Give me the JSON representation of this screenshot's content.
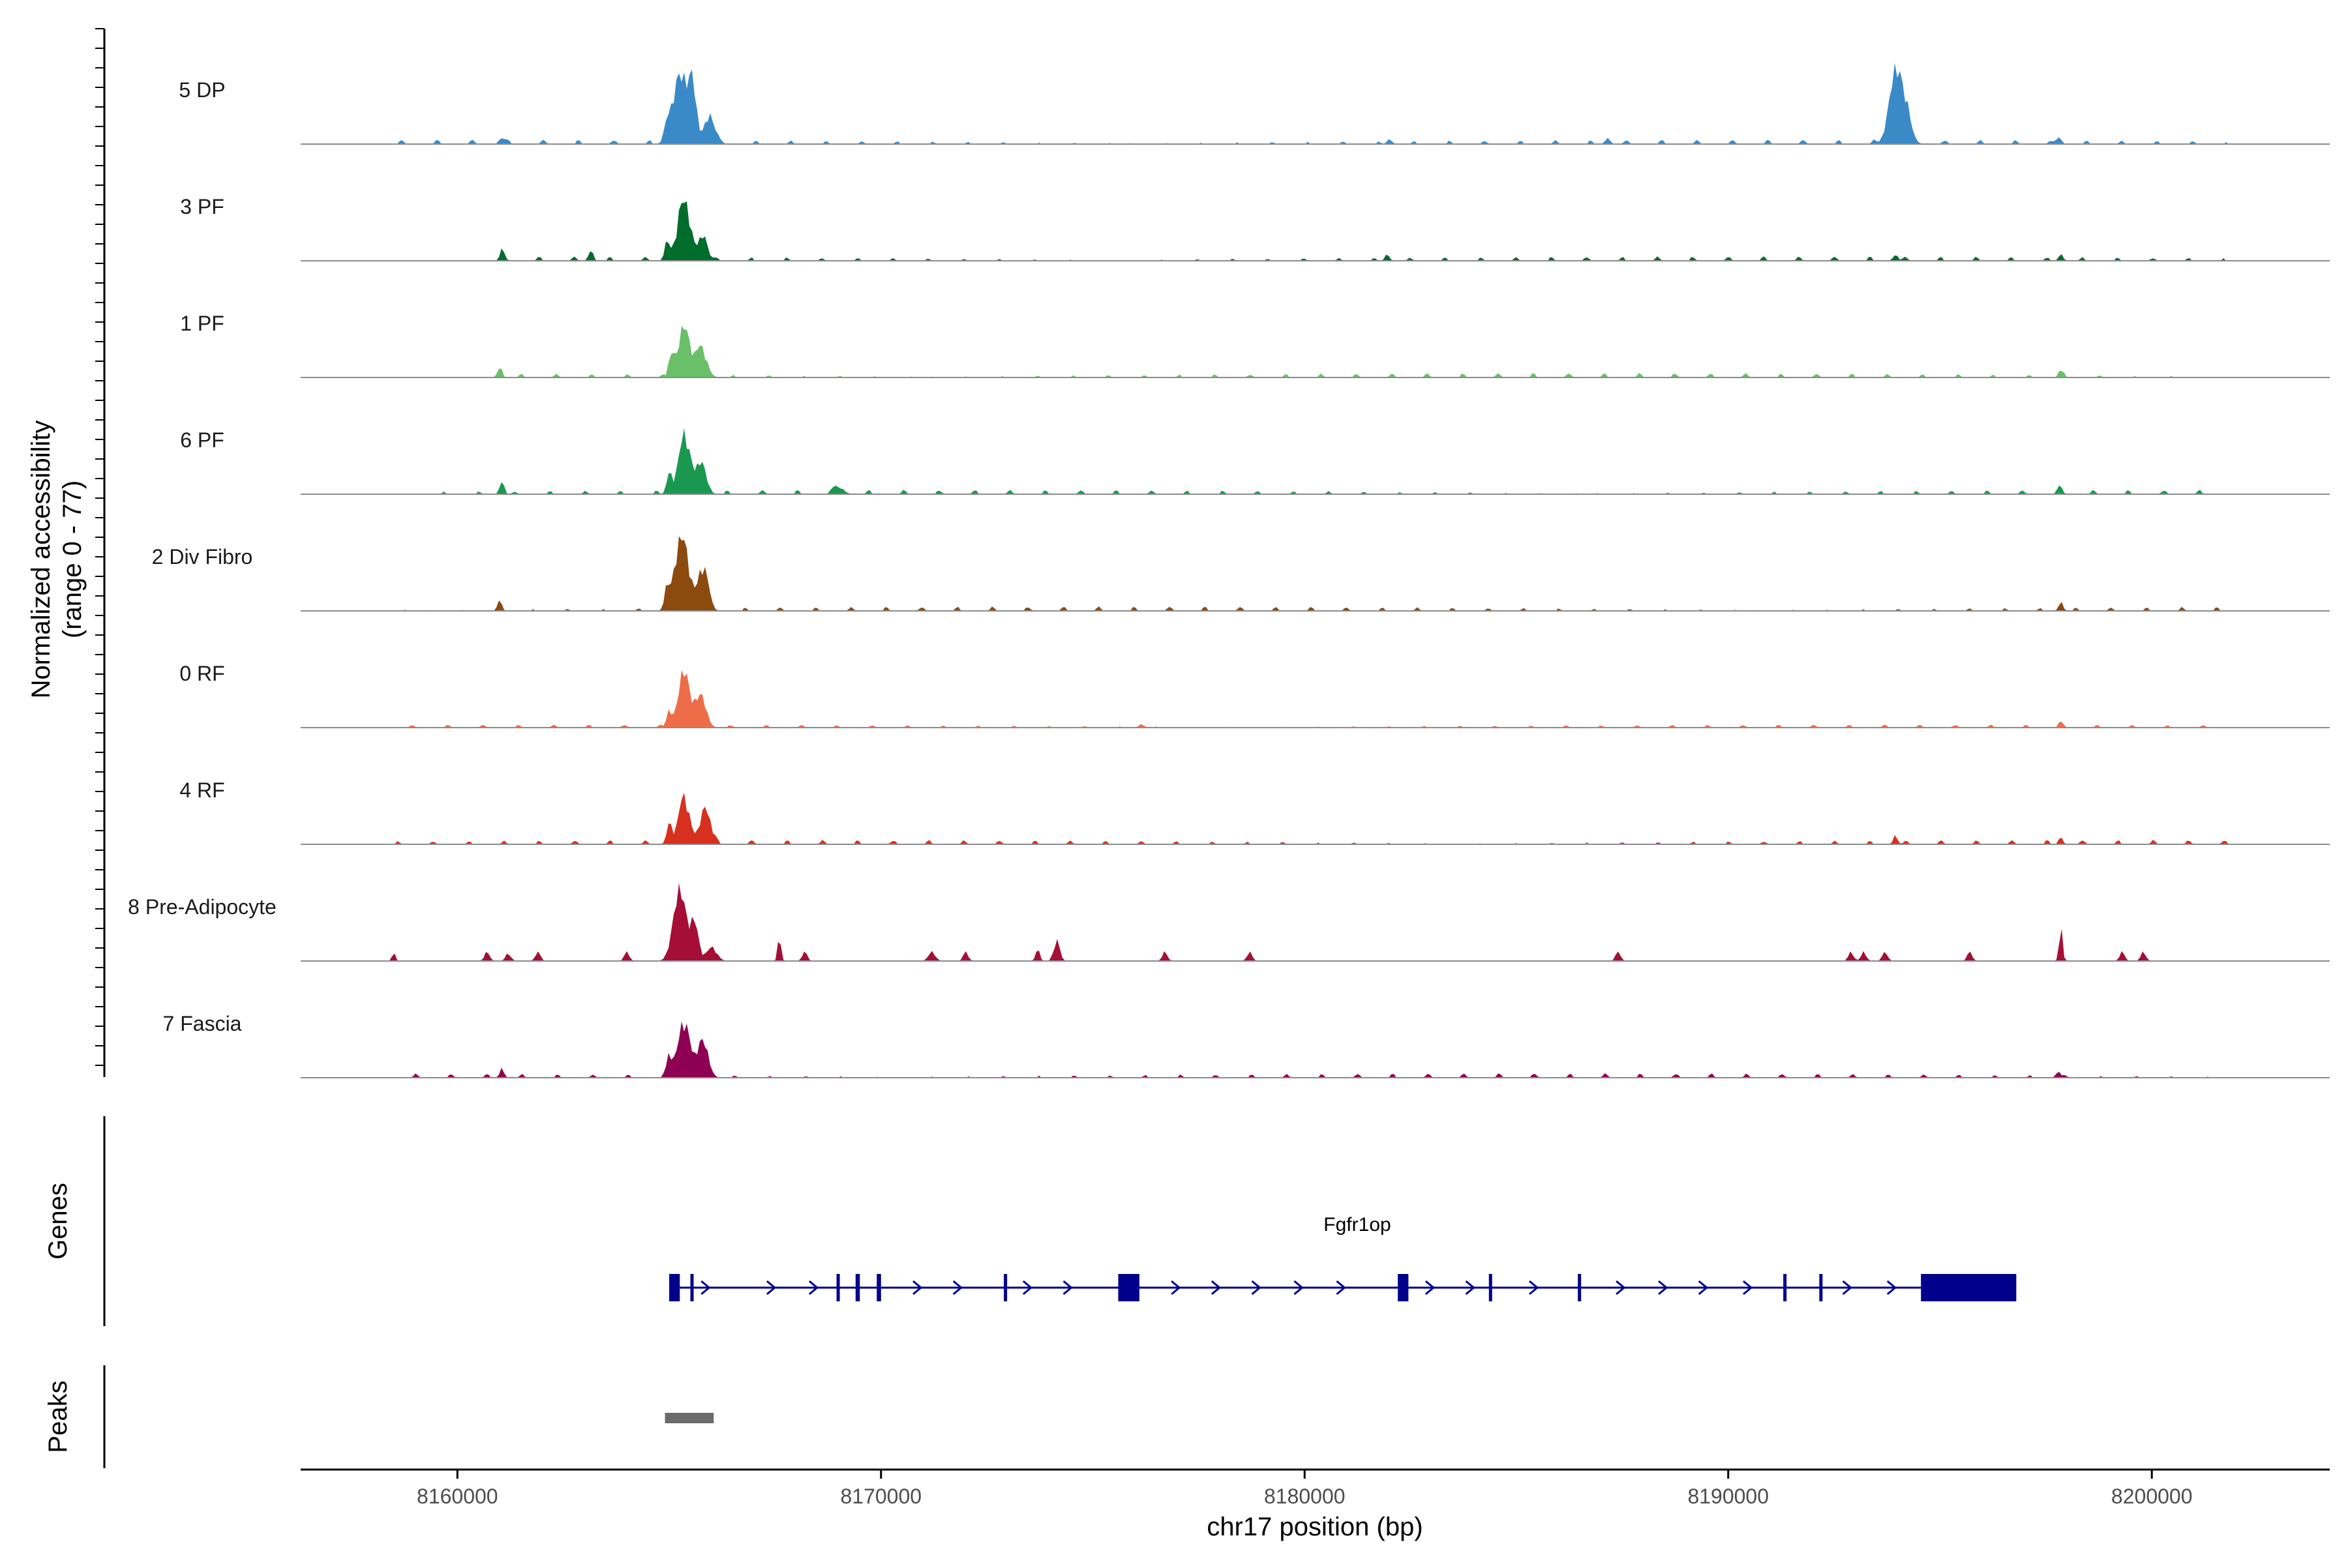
{
  "chart_data": {
    "type": "area",
    "title": "",
    "xlabel": "chr17 position (bp)",
    "ylabel": "Normalized accessibility",
    "ylabel_range": "(range 0 - 77)",
    "xlim": [
      8156300,
      8204200
    ],
    "x_ticks": [
      8160000,
      8170000,
      8180000,
      8190000,
      8200000
    ],
    "x_tick_labels": [
      "8160000",
      "8170000",
      "8180000",
      "8190000",
      "8200000"
    ],
    "ylim": [
      0,
      77
    ],
    "tracks": [
      {
        "name": "5 DP",
        "color": "#3a8ac8",
        "noise": [
          [
            8158500,
            8201800,
            3,
            77
          ]
        ],
        "peaks": [
          [
            8165250,
            60,
            160
          ],
          [
            8165550,
            50,
            90
          ],
          [
            8165950,
            25,
            120
          ],
          [
            8164950,
            14,
            70
          ],
          [
            8193950,
            62,
            150
          ],
          [
            8194200,
            22,
            130
          ],
          [
            8161050,
            6,
            60
          ],
          [
            8187150,
            5,
            60
          ],
          [
            8197800,
            6,
            60
          ],
          [
            8182000,
            4,
            60
          ]
        ]
      },
      {
        "name": "3 PF",
        "color": "#006d2c",
        "noise": [
          [
            8160900,
            8201700,
            3,
            31
          ]
        ],
        "peaks": [
          [
            8165350,
            52,
            150
          ],
          [
            8165800,
            22,
            100
          ],
          [
            8164950,
            16,
            60
          ],
          [
            8161050,
            8,
            50
          ],
          [
            8163150,
            10,
            50
          ],
          [
            8193950,
            5,
            60
          ],
          [
            8197850,
            6,
            50
          ],
          [
            8181950,
            6,
            50
          ]
        ]
      },
      {
        "name": "1 PF",
        "color": "#6abf69",
        "noise": [
          [
            8160900,
            8200800,
            3,
            17
          ]
        ],
        "peaks": [
          [
            8165350,
            45,
            130
          ],
          [
            8165750,
            26,
            130
          ],
          [
            8165050,
            20,
            60
          ],
          [
            8161000,
            10,
            50
          ],
          [
            8197850,
            7,
            50
          ]
        ]
      },
      {
        "name": "6 PF",
        "color": "#1a9850",
        "noise": [
          [
            8159300,
            8201800,
            3,
            53
          ]
        ],
        "peaks": [
          [
            8165350,
            52,
            130
          ],
          [
            8165750,
            28,
            120
          ],
          [
            8165000,
            18,
            60
          ],
          [
            8161050,
            12,
            50
          ],
          [
            8169000,
            6,
            120
          ],
          [
            8197850,
            6,
            50
          ]
        ]
      },
      {
        "name": "2 Div Fibro",
        "color": "#8c4a0e",
        "noise": [
          [
            8158500,
            8201800,
            3,
            67
          ]
        ],
        "peaks": [
          [
            8165300,
            65,
            160
          ],
          [
            8165800,
            38,
            120
          ],
          [
            8164950,
            18,
            60
          ],
          [
            8161000,
            9,
            50
          ],
          [
            8197850,
            8,
            50
          ]
        ]
      },
      {
        "name": "0 RF",
        "color": "#ef6c48",
        "noise": [
          [
            8158500,
            8201800,
            2,
            71
          ]
        ],
        "peaks": [
          [
            8165350,
            50,
            130
          ],
          [
            8165750,
            28,
            120
          ],
          [
            8165000,
            14,
            60
          ],
          [
            8197850,
            4,
            50
          ],
          [
            8176150,
            3,
            60
          ]
        ]
      },
      {
        "name": "4 RF",
        "color": "#d7301f",
        "noise": [
          [
            8158500,
            8201800,
            3,
            59
          ]
        ],
        "peaks": [
          [
            8165350,
            40,
            130
          ],
          [
            8165850,
            32,
            120
          ],
          [
            8165000,
            18,
            60
          ],
          [
            8193950,
            8,
            50
          ],
          [
            8197850,
            6,
            50
          ]
        ]
      },
      {
        "name": "8 Pre-Adipocyte",
        "color": "#a50f37",
        "noise": [],
        "peaks": [
          [
            8165250,
            62,
            150
          ],
          [
            8165600,
            32,
            90
          ],
          [
            8166000,
            12,
            120
          ],
          [
            8167600,
            20,
            40
          ],
          [
            8174150,
            18,
            70
          ],
          [
            8173700,
            10,
            50
          ],
          [
            8197850,
            30,
            40
          ],
          [
            8158500,
            7,
            40
          ],
          [
            8160700,
            8,
            60
          ],
          [
            8161200,
            7,
            60
          ],
          [
            8161900,
            8,
            60
          ],
          [
            8164000,
            8,
            60
          ],
          [
            8168200,
            8,
            60
          ],
          [
            8171200,
            8,
            80
          ],
          [
            8172000,
            8,
            60
          ],
          [
            8176700,
            8,
            60
          ],
          [
            8178700,
            8,
            60
          ],
          [
            8187400,
            8,
            60
          ],
          [
            8192900,
            8,
            60
          ],
          [
            8193200,
            8,
            60
          ],
          [
            8193700,
            8,
            60
          ],
          [
            8195700,
            8,
            60
          ],
          [
            8199300,
            8,
            60
          ],
          [
            8199800,
            8,
            60
          ]
        ]
      },
      {
        "name": "7 Fascia",
        "color": "#8e0152",
        "noise": [
          [
            8158500,
            8201800,
            3,
            89
          ]
        ],
        "peaks": [
          [
            8165350,
            48,
            150
          ],
          [
            8165800,
            32,
            120
          ],
          [
            8165000,
            18,
            60
          ],
          [
            8161050,
            8,
            50
          ],
          [
            8197800,
            5,
            60
          ]
        ]
      }
    ],
    "genes": {
      "title": "Genes",
      "name": "Fgfr1op",
      "strand": "+",
      "color": "#00008b",
      "start": 8165000,
      "end": 8196800,
      "exons": [
        [
          8165000,
          8165250,
          "tall"
        ],
        [
          8165500,
          8165550,
          "tall"
        ],
        [
          8168950,
          8169000,
          "tall"
        ],
        [
          8169400,
          8169500,
          "tall"
        ],
        [
          8169900,
          8170000,
          "tall"
        ],
        [
          8172900,
          8172950,
          "tall"
        ],
        [
          8175600,
          8176100,
          "tall"
        ],
        [
          8182200,
          8182450,
          "tall"
        ],
        [
          8184350,
          8184400,
          "tall"
        ],
        [
          8186450,
          8186500,
          "tall"
        ],
        [
          8191300,
          8191350,
          "tall"
        ],
        [
          8192150,
          8192200,
          "tall"
        ],
        [
          8194550,
          8196800,
          "tall"
        ]
      ],
      "arrows": [
        8165850,
        8167400,
        8168400,
        8170850,
        8171800,
        8173450,
        8174400,
        8176950,
        8177900,
        8178850,
        8179850,
        8180850,
        8182950,
        8183900,
        8185400,
        8187450,
        8188450,
        8189400,
        8190450,
        8192800,
        8193850
      ]
    },
    "peaks_track": {
      "title": "Peaks",
      "color": "#6b6b6b",
      "regions": [
        [
          8164900,
          8166050
        ]
      ]
    }
  }
}
